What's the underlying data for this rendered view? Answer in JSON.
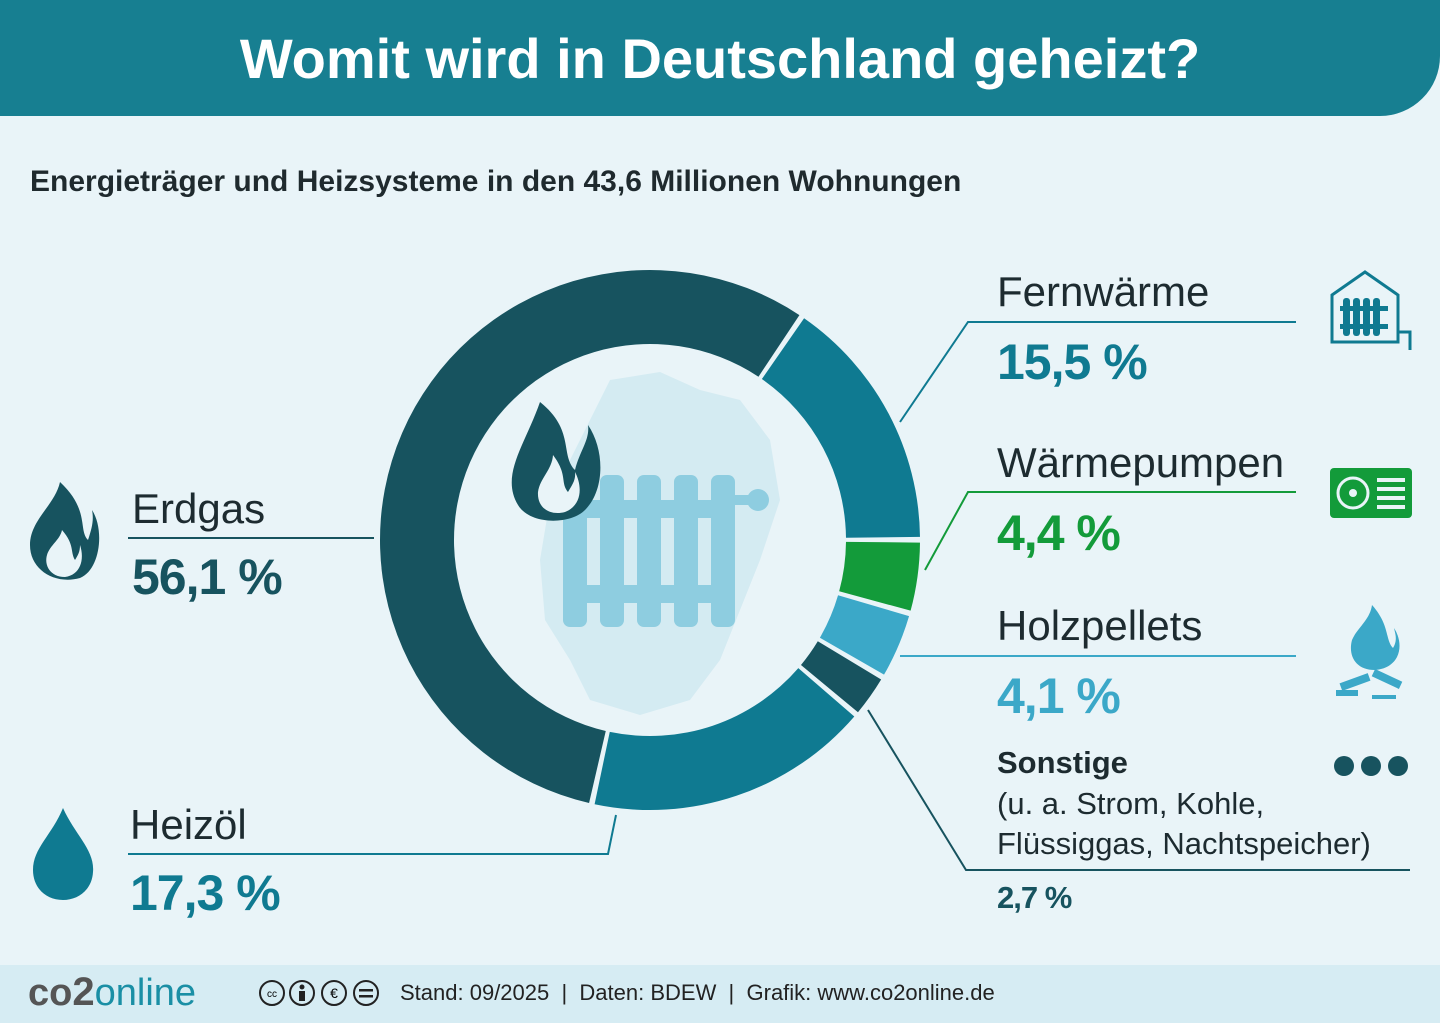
{
  "header": {
    "title": "Womit wird in Deutschland geheizt?"
  },
  "subtitle": "Energieträger und Heizsysteme in den 43,6 Millionen Wohnungen",
  "chart_data": {
    "type": "pie",
    "donut": true,
    "title": "Womit wird in Deutschland geheizt?",
    "subtitle": "Energieträger und Heizsysteme in den 43,6 Millionen Wohnungen",
    "unit": "%",
    "categories": [
      "Fernwärme",
      "Wärmepumpen",
      "Holzpellets",
      "Sonstige",
      "Heizöl",
      "Erdgas"
    ],
    "values": [
      15.5,
      4.4,
      4.1,
      2.7,
      17.3,
      56.1
    ],
    "labels": [
      "15,5 %",
      "4,4 %",
      "4,1 %",
      "2,7 %",
      "17,3 %",
      "56,1 %"
    ],
    "colors": [
      "#0f7a91",
      "#139b3a",
      "#3ba8c8",
      "#17535f",
      "#0f7a91",
      "#17535f"
    ],
    "sonstige_note": "(u. a. Strom, Kohle, Flüssiggas, Nachtspeicher)"
  },
  "icons": {
    "erdgas": "flame-icon",
    "heizoel": "oil-drop-icon",
    "fernwaerme": "district-heating-icon",
    "waermepumpen": "heat-pump-icon",
    "holzpellets": "wood-fire-icon",
    "sonstige": "more-dots-icon",
    "center": "radiator-flame-icon"
  },
  "footer": {
    "logo": "co2online",
    "logo_a": "co",
    "logo_b": "2",
    "logo_c": "online",
    "license": "CC BY-NC-ND",
    "credits": "Stand: 09/2025  |  Daten: BDEW  |  Grafik: www.co2online.de"
  }
}
